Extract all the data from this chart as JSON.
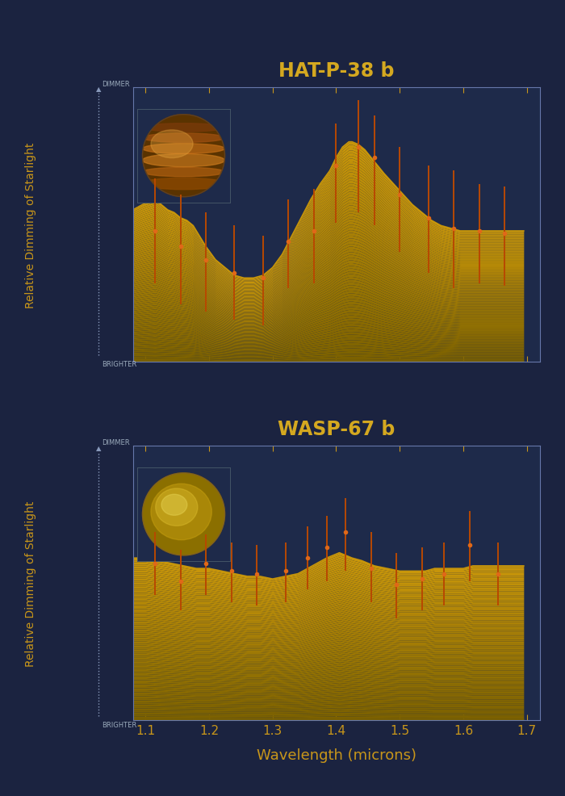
{
  "background_color": "#1b2340",
  "plot_bg_color": "#1e2a4a",
  "title_color": "#d4a820",
  "axis_label_color": "#c8961a",
  "tick_color": "#c8961a",
  "border_color": "#6677aa",
  "fill_color_top": "#c8960a",
  "fill_color_bot": "#7a6000",
  "line_color": "#c8960a",
  "dot_color": "#e06818",
  "errorbar_color": "#b84800",
  "panel1_title": "HAT-P-38 b",
  "panel2_title": "WASP-67 b",
  "xlabel": "Wavelength (microns)",
  "ylabel": "Relative Dimming of Starlight",
  "label_dimmer": "DIMMER",
  "label_brighter": "BRIGHTER",
  "xlim": [
    1.08,
    1.72
  ],
  "xticks": [
    1.1,
    1.2,
    1.3,
    1.4,
    1.5,
    1.6,
    1.7
  ],
  "hat38_curve_x": [
    1.08,
    1.095,
    1.105,
    1.115,
    1.125,
    1.135,
    1.145,
    1.155,
    1.165,
    1.175,
    1.185,
    1.195,
    1.21,
    1.225,
    1.24,
    1.255,
    1.27,
    1.285,
    1.3,
    1.315,
    1.33,
    1.345,
    1.36,
    1.375,
    1.39,
    1.4,
    1.41,
    1.42,
    1.425,
    1.435,
    1.445,
    1.455,
    1.465,
    1.475,
    1.49,
    1.505,
    1.52,
    1.535,
    1.55,
    1.565,
    1.58,
    1.595,
    1.61,
    1.625,
    1.64,
    1.655,
    1.67,
    1.695
  ],
  "hat38_curve_y": [
    0.58,
    0.6,
    0.61,
    0.62,
    0.6,
    0.58,
    0.57,
    0.55,
    0.54,
    0.52,
    0.48,
    0.44,
    0.39,
    0.36,
    0.33,
    0.32,
    0.32,
    0.33,
    0.36,
    0.41,
    0.48,
    0.55,
    0.62,
    0.68,
    0.73,
    0.78,
    0.82,
    0.84,
    0.84,
    0.83,
    0.81,
    0.78,
    0.75,
    0.72,
    0.68,
    0.64,
    0.6,
    0.57,
    0.54,
    0.52,
    0.51,
    0.5,
    0.5,
    0.5,
    0.5,
    0.5,
    0.5,
    0.5
  ],
  "hat38_points_x": [
    1.115,
    1.155,
    1.195,
    1.24,
    1.285,
    1.325,
    1.365,
    1.4,
    1.435,
    1.46,
    1.5,
    1.545,
    1.585,
    1.625,
    1.665
  ],
  "hat38_points_y": [
    0.5,
    0.44,
    0.39,
    0.34,
    0.32,
    0.46,
    0.5,
    0.75,
    0.82,
    0.78,
    0.64,
    0.55,
    0.51,
    0.5,
    0.49
  ],
  "hat38_err_low": [
    0.2,
    0.22,
    0.2,
    0.18,
    0.18,
    0.18,
    0.2,
    0.22,
    0.25,
    0.26,
    0.22,
    0.21,
    0.23,
    0.2,
    0.2
  ],
  "hat38_err_high": [
    0.2,
    0.2,
    0.18,
    0.18,
    0.16,
    0.16,
    0.16,
    0.16,
    0.18,
    0.16,
    0.18,
    0.2,
    0.22,
    0.18,
    0.18
  ],
  "wasp67_curve_x": [
    1.08,
    1.1,
    1.12,
    1.14,
    1.16,
    1.18,
    1.2,
    1.22,
    1.24,
    1.26,
    1.28,
    1.3,
    1.32,
    1.34,
    1.355,
    1.37,
    1.385,
    1.395,
    1.405,
    1.415,
    1.425,
    1.44,
    1.46,
    1.48,
    1.5,
    1.52,
    1.54,
    1.555,
    1.57,
    1.585,
    1.6,
    1.615,
    1.63,
    1.645,
    1.66,
    1.695
  ],
  "wasp67_curve_y": [
    0.62,
    0.62,
    0.61,
    0.6,
    0.59,
    0.58,
    0.58,
    0.57,
    0.56,
    0.55,
    0.55,
    0.54,
    0.55,
    0.56,
    0.58,
    0.6,
    0.62,
    0.63,
    0.64,
    0.63,
    0.62,
    0.61,
    0.59,
    0.58,
    0.57,
    0.57,
    0.57,
    0.58,
    0.58,
    0.58,
    0.58,
    0.59,
    0.59,
    0.59,
    0.59,
    0.59
  ],
  "wasp67_points_x": [
    1.115,
    1.155,
    1.195,
    1.235,
    1.275,
    1.32,
    1.355,
    1.385,
    1.415,
    1.455,
    1.495,
    1.535,
    1.57,
    1.61,
    1.655
  ],
  "wasp67_points_y": [
    0.6,
    0.53,
    0.6,
    0.57,
    0.56,
    0.57,
    0.62,
    0.66,
    0.72,
    0.58,
    0.52,
    0.54,
    0.56,
    0.67,
    0.56
  ],
  "wasp67_err_low": [
    0.12,
    0.11,
    0.12,
    0.12,
    0.12,
    0.12,
    0.12,
    0.13,
    0.15,
    0.13,
    0.13,
    0.12,
    0.12,
    0.14,
    0.12
  ],
  "wasp67_err_high": [
    0.12,
    0.12,
    0.11,
    0.11,
    0.11,
    0.11,
    0.12,
    0.12,
    0.13,
    0.14,
    0.12,
    0.12,
    0.12,
    0.13,
    0.12
  ]
}
